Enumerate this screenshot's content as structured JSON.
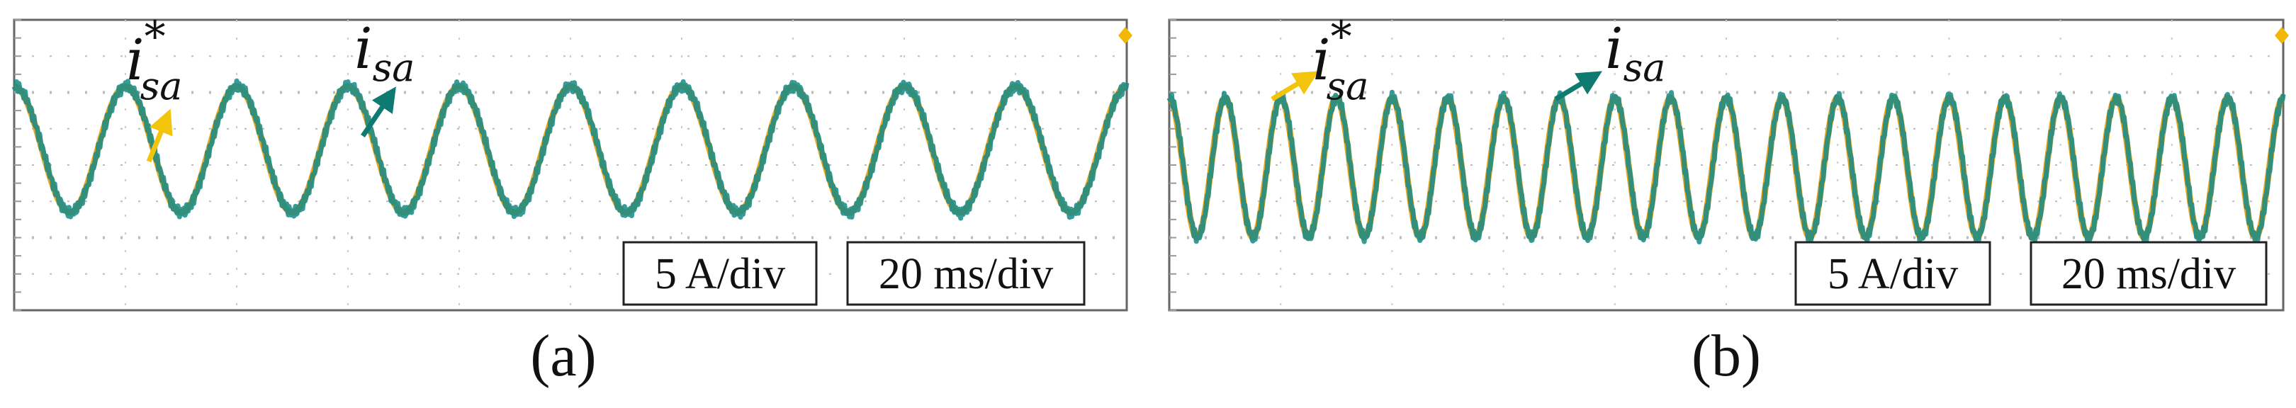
{
  "chart_data": [
    {
      "type": "line",
      "panel": "(a)",
      "series": [
        {
          "name": "i*_sa",
          "color": "#e8a317",
          "cycles": 10
        },
        {
          "name": "i_sa",
          "color": "#138a8a",
          "cycles": 10
        }
      ],
      "annotations": {
        "ref_label": {
          "base": "i",
          "sup": "*",
          "sub": "sa",
          "arrow_color": "#f2c40c"
        },
        "meas_label": {
          "base": "i",
          "sub": "sa",
          "arrow_color": "#0e7a72"
        }
      },
      "scales": [
        "5 A/div",
        "20 ms/div"
      ],
      "caption": "(a)",
      "grid": true
    },
    {
      "type": "line",
      "panel": "(b)",
      "series": [
        {
          "name": "i*_sa",
          "color": "#e8a317",
          "cycles": 20
        },
        {
          "name": "i_sa",
          "color": "#138a8a",
          "cycles": 20
        }
      ],
      "annotations": {
        "ref_label": {
          "base": "i",
          "sup": "*",
          "sub": "sa",
          "arrow_color": "#f2c40c"
        },
        "meas_label": {
          "base": "i",
          "sub": "sa",
          "arrow_color": "#0e7a72"
        }
      },
      "scales": [
        "5 A/div",
        "20 ms/div"
      ],
      "caption": "(b)",
      "grid": true
    }
  ]
}
